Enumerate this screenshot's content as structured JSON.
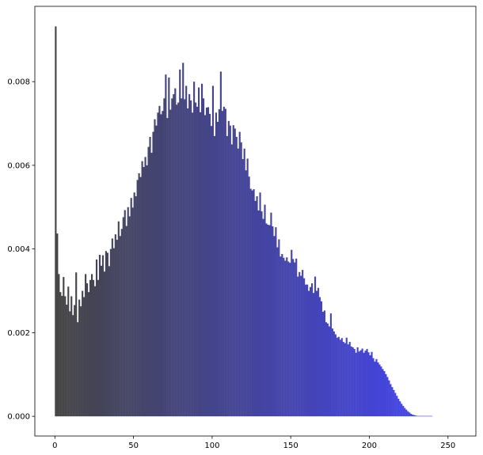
{
  "chart_data": {
    "type": "bar",
    "title": "",
    "xlabel": "",
    "ylabel": "",
    "xlim": [
      -12.75,
      267.75
    ],
    "ylim": [
      -0.00047,
      0.0098
    ],
    "grid": false,
    "legend": "none",
    "bar_width": 1,
    "color_start": "#444444",
    "color_end": "#4444ee",
    "x_ticks": [
      0,
      50,
      100,
      150,
      200,
      250
    ],
    "y_ticks": [
      0.0,
      0.002,
      0.004,
      0.006,
      0.008
    ],
    "x_tick_labels": [
      "0",
      "50",
      "100",
      "150",
      "200",
      "250"
    ],
    "y_tick_labels": [
      "0.000",
      "0.002",
      "0.004",
      "0.006",
      "0.008"
    ],
    "values": [
      0.00932,
      0.00437,
      0.0034,
      0.00297,
      0.00288,
      0.00333,
      0.00287,
      0.00267,
      0.0031,
      0.00251,
      0.00287,
      0.00242,
      0.00266,
      0.00344,
      0.00225,
      0.00279,
      0.00263,
      0.003,
      0.00285,
      0.0034,
      0.00318,
      0.00297,
      0.00326,
      0.0034,
      0.00326,
      0.00311,
      0.00375,
      0.00326,
      0.00386,
      0.0036,
      0.00385,
      0.00346,
      0.00395,
      0.00391,
      0.00359,
      0.004,
      0.00425,
      0.00402,
      0.00435,
      0.00422,
      0.00466,
      0.00431,
      0.00448,
      0.00476,
      0.00493,
      0.00455,
      0.005,
      0.00478,
      0.00522,
      0.00499,
      0.00535,
      0.00526,
      0.00565,
      0.00581,
      0.00572,
      0.0061,
      0.00596,
      0.0062,
      0.006,
      0.00644,
      0.00668,
      0.0063,
      0.0068,
      0.0071,
      0.00695,
      0.00726,
      0.00742,
      0.00722,
      0.0073,
      0.0076,
      0.00817,
      0.00713,
      0.0081,
      0.00733,
      0.0076,
      0.0077,
      0.00784,
      0.00745,
      0.0075,
      0.00829,
      0.0076,
      0.00845,
      0.00758,
      0.0079,
      0.00736,
      0.0077,
      0.00755,
      0.00726,
      0.008,
      0.0075,
      0.0074,
      0.00786,
      0.00727,
      0.00795,
      0.0076,
      0.0072,
      0.00738,
      0.00739,
      0.00723,
      0.00694,
      0.0079,
      0.0067,
      0.00726,
      0.00704,
      0.00734,
      0.00824,
      0.0073,
      0.0074,
      0.00735,
      0.0067,
      0.00706,
      0.00695,
      0.0065,
      0.00696,
      0.00688,
      0.00668,
      0.0064,
      0.0068,
      0.00655,
      0.00615,
      0.0064,
      0.00588,
      0.00616,
      0.00573,
      0.00544,
      0.0054,
      0.00543,
      0.00515,
      0.00526,
      0.00492,
      0.00535,
      0.0049,
      0.00472,
      0.00506,
      0.00461,
      0.00458,
      0.00457,
      0.00487,
      0.00454,
      0.00431,
      0.00452,
      0.00404,
      0.00423,
      0.00382,
      0.00388,
      0.00379,
      0.00372,
      0.0038,
      0.0037,
      0.00367,
      0.00398,
      0.00376,
      0.00368,
      0.00377,
      0.00334,
      0.00345,
      0.00336,
      0.0035,
      0.0033,
      0.00315,
      0.00315,
      0.003,
      0.00309,
      0.00318,
      0.00295,
      0.00334,
      0.003,
      0.00307,
      0.00285,
      0.00275,
      0.0025,
      0.00253,
      0.00225,
      0.00222,
      0.00215,
      0.00246,
      0.0021,
      0.00203,
      0.00196,
      0.00188,
      0.0019,
      0.00183,
      0.00187,
      0.00178,
      0.00175,
      0.00188,
      0.00172,
      0.00178,
      0.00167,
      0.00165,
      0.00161,
      0.00152,
      0.00165,
      0.00155,
      0.00158,
      0.00162,
      0.00152,
      0.00157,
      0.00161,
      0.00153,
      0.00146,
      0.00154,
      0.00139,
      0.00131,
      0.00137,
      0.00129,
      0.00124,
      0.00119,
      0.00113,
      0.00108,
      0.00101,
      0.00094,
      0.00086,
      0.00077,
      0.0007,
      0.00063,
      0.00056,
      0.00049,
      0.00042,
      0.00036,
      0.0003,
      0.00025,
      0.0002,
      0.00016,
      0.00012,
      9e-05,
      6e-05,
      4e-05,
      3e-05,
      2e-05,
      1e-05,
      1e-05,
      1e-05,
      1e-05,
      1e-05,
      1e-05,
      1e-05,
      1e-05,
      1e-05,
      1e-05
    ],
    "x_start": 0
  }
}
